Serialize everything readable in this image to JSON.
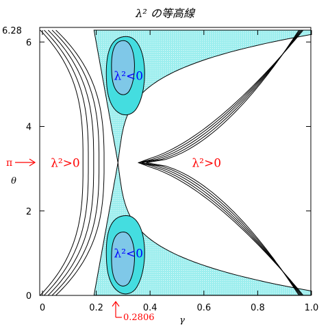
{
  "chart_data": {
    "type": "contour",
    "title": "λ² の等高線",
    "xlabel": "γ",
    "ylabel": "θ",
    "xlim": [
      0.0,
      1.0
    ],
    "ylim": [
      0.0,
      6.28
    ],
    "x_ticks": [
      {
        "value": 0.0,
        "label": "0"
      },
      {
        "value": 0.2,
        "label": "0.2"
      },
      {
        "value": 0.4,
        "label": "0.4"
      },
      {
        "value": 0.6,
        "label": "0.6"
      },
      {
        "value": 0.8,
        "label": "0.8"
      },
      {
        "value": 1.0,
        "label": "1.0"
      }
    ],
    "y_ticks": [
      {
        "value": 0,
        "label": "0"
      },
      {
        "value": 2,
        "label": "2"
      },
      {
        "value": 4,
        "label": "4"
      },
      {
        "value": 6,
        "label": "6"
      }
    ],
    "y_top_label": "6.28",
    "annotations": {
      "pi_marker": {
        "label": "π",
        "value": 3.1416
      },
      "gamma_marker": {
        "label": "0.2806",
        "value": 0.2806
      }
    },
    "region_labels": [
      {
        "text": "λ²>0",
        "color": "#ff0000",
        "x": 0.085,
        "y": 3.14
      },
      {
        "text": "λ²>0",
        "color": "#ff0000",
        "x": 0.61,
        "y": 3.14
      },
      {
        "text": "λ²<0",
        "color": "#0000ff",
        "x": 0.32,
        "y": 5.2
      },
      {
        "text": "λ²<0",
        "color": "#0000ff",
        "x": 0.32,
        "y": 1.0
      }
    ],
    "fill_colors": {
      "outer": "#aaf0f0",
      "middle": "#44dde0",
      "inner": "#7fc8e8"
    },
    "contour_line_offsets": [
      0.016,
      0.035,
      0.055,
      0.075,
      0.095
    ]
  }
}
